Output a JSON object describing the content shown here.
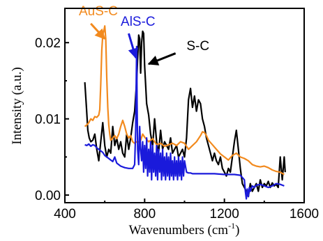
{
  "chart_data": {
    "type": "line",
    "title": "",
    "xlabel_main": "Wavenumbers (cm",
    "xlabel_sup": "-1",
    "xlabel_close": ")",
    "ylabel": "Intensity (a.u.)",
    "xlim": [
      400,
      1600
    ],
    "ylim": [
      -0.001,
      0.0245
    ],
    "xticks": [
      400,
      800,
      1200,
      1600
    ],
    "xtick_labels": [
      "400",
      "800",
      "1200",
      "1600"
    ],
    "yticks": [
      0.0,
      0.01,
      0.02
    ],
    "ytick_labels": [
      "0.00",
      "0.01",
      "0.02"
    ],
    "grid": false,
    "colors": {
      "black": "#000000",
      "orange": "#f28a1e",
      "blue": "#1a1adb"
    },
    "annotations": [
      {
        "text": "AuS-C",
        "color": "#f28a1e",
        "x": 470,
        "y": 0.0236,
        "arrow_to": [
          600,
          0.0205
        ],
        "arrow_from": [
          530,
          0.0225
        ]
      },
      {
        "text": "AlS-C",
        "color": "#1a1adb",
        "x": 680,
        "y": 0.0222,
        "arrow_to": [
          756,
          0.018
        ],
        "arrow_from": [
          720,
          0.0212
        ]
      },
      {
        "text": "S-C",
        "color": "#000000",
        "x": 1010,
        "y": 0.019,
        "arrow_to": [
          820,
          0.0172
        ],
        "arrow_from": [
          955,
          0.0186
        ]
      }
    ],
    "series": [
      {
        "name": "S-C",
        "color": "#000000",
        "x": [
          500,
          508,
          515,
          522,
          530,
          540,
          550,
          560,
          570,
          580,
          590,
          600,
          610,
          620,
          630,
          640,
          650,
          660,
          670,
          680,
          690,
          700,
          710,
          720,
          730,
          740,
          750,
          760,
          770,
          775,
          780,
          785,
          790,
          795,
          800,
          810,
          820,
          830,
          840,
          850,
          860,
          870,
          880,
          890,
          900,
          910,
          920,
          930,
          940,
          950,
          960,
          970,
          980,
          990,
          1000,
          1010,
          1020,
          1030,
          1040,
          1050,
          1060,
          1070,
          1080,
          1090,
          1100,
          1110,
          1120,
          1130,
          1140,
          1150,
          1160,
          1170,
          1180,
          1190,
          1200,
          1210,
          1220,
          1230,
          1240,
          1250,
          1260,
          1270,
          1280,
          1290,
          1300,
          1310,
          1320,
          1330,
          1340,
          1350,
          1360,
          1370,
          1380,
          1390,
          1400,
          1410,
          1420,
          1430,
          1440,
          1450,
          1460,
          1470,
          1480,
          1490,
          1500,
          1505
        ],
        "y": [
          0.0148,
          0.0115,
          0.0085,
          0.0075,
          0.007,
          0.0072,
          0.008,
          0.006,
          0.0045,
          0.007,
          0.0095,
          0.0065,
          0.005,
          0.006,
          0.0055,
          0.009,
          0.0065,
          0.0075,
          0.006,
          0.007,
          0.0055,
          0.005,
          0.008,
          0.006,
          0.0075,
          0.0095,
          0.011,
          0.015,
          0.021,
          0.0205,
          0.016,
          0.02,
          0.0215,
          0.0212,
          0.017,
          0.012,
          0.0105,
          0.008,
          0.0065,
          0.01,
          0.007,
          0.0055,
          0.0085,
          0.006,
          0.007,
          0.0065,
          0.006,
          0.0075,
          0.0055,
          0.006,
          0.0065,
          0.005,
          0.0055,
          0.006,
          0.005,
          0.0075,
          0.0125,
          0.014,
          0.0115,
          0.013,
          0.011,
          0.0125,
          0.012,
          0.01,
          0.009,
          0.0075,
          0.0065,
          0.0055,
          0.0045,
          0.0055,
          0.0045,
          0.004,
          0.005,
          0.0035,
          0.003,
          0.0025,
          0.0035,
          0.003,
          0.005,
          0.007,
          0.0085,
          0.006,
          0.0035,
          0.0015,
          0.001,
          0.0005,
          -0.0002,
          0.0015,
          0.0005,
          0.001,
          0.0015,
          0.0005,
          0.002,
          0.001,
          0.0015,
          0.0012,
          0.0018,
          0.001,
          0.0016,
          0.0012,
          0.0014,
          0.001,
          0.005,
          0.002,
          0.005,
          0.003
        ]
      },
      {
        "name": "AuS-C",
        "color": "#f28a1e",
        "x": [
          500,
          510,
          520,
          530,
          540,
          550,
          560,
          570,
          575,
          580,
          585,
          590,
          595,
          600,
          605,
          610,
          615,
          620,
          625,
          630,
          635,
          640,
          650,
          660,
          670,
          680,
          690,
          700,
          710,
          720,
          730,
          740,
          750,
          760,
          770,
          780,
          790,
          800,
          820,
          840,
          860,
          880,
          900,
          920,
          940,
          960,
          980,
          1000,
          1020,
          1040,
          1060,
          1080,
          1090,
          1100,
          1110,
          1120,
          1140,
          1160,
          1180,
          1200,
          1220,
          1240,
          1260,
          1280,
          1300,
          1320,
          1340,
          1360,
          1380,
          1400,
          1420,
          1440,
          1460,
          1480,
          1500
        ],
        "y": [
          0.009,
          0.0092,
          0.0095,
          0.01,
          0.0098,
          0.0103,
          0.0102,
          0.0105,
          0.0112,
          0.0145,
          0.019,
          0.021,
          0.0215,
          0.0222,
          0.0205,
          0.0155,
          0.0115,
          0.0092,
          0.008,
          0.0072,
          0.0073,
          0.0075,
          0.0078,
          0.0074,
          0.008,
          0.009,
          0.0098,
          0.009,
          0.008,
          0.0075,
          0.0078,
          0.007,
          0.0068,
          0.007,
          0.007,
          0.0072,
          0.008,
          0.0076,
          0.007,
          0.0074,
          0.0066,
          0.0068,
          0.0064,
          0.0066,
          0.0068,
          0.0065,
          0.007,
          0.0068,
          0.006,
          0.0065,
          0.007,
          0.0078,
          0.0083,
          0.0082,
          0.0078,
          0.0072,
          0.0066,
          0.006,
          0.0054,
          0.005,
          0.0046,
          0.0052,
          0.0055,
          0.005,
          0.0048,
          0.0045,
          0.004,
          0.0038,
          0.0037,
          0.0038,
          0.0036,
          0.0033,
          0.0031,
          0.003,
          0.0027
        ]
      },
      {
        "name": "AlS-C",
        "color": "#1a1adb",
        "x": [
          500,
          510,
          520,
          530,
          540,
          550,
          560,
          570,
          580,
          590,
          600,
          610,
          620,
          630,
          640,
          650,
          660,
          680,
          700,
          720,
          740,
          750,
          755,
          758,
          760,
          762,
          765,
          770,
          775,
          780,
          785,
          790,
          795,
          800,
          805,
          810,
          815,
          820,
          825,
          830,
          835,
          840,
          845,
          850,
          855,
          860,
          865,
          870,
          875,
          880,
          885,
          890,
          895,
          900,
          905,
          910,
          915,
          920,
          925,
          930,
          935,
          940,
          945,
          950,
          955,
          960,
          965,
          970,
          975,
          980,
          985,
          990,
          995,
          1000,
          1010,
          1020,
          1030,
          1040,
          1050,
          1100,
          1150,
          1200,
          1250,
          1280,
          1300,
          1305,
          1310,
          1315,
          1320,
          1325,
          1330,
          1340,
          1350,
          1360,
          1380,
          1400,
          1420,
          1440,
          1460,
          1480,
          1500
        ],
        "y": [
          0.0066,
          0.0065,
          0.0067,
          0.0064,
          0.0066,
          0.0065,
          0.0062,
          0.006,
          0.0058,
          0.0056,
          0.0052,
          0.005,
          0.0048,
          0.0046,
          0.0044,
          0.005,
          0.0042,
          0.0038,
          0.0036,
          0.0035,
          0.0035,
          0.004,
          0.0085,
          0.015,
          0.0195,
          0.012,
          0.006,
          0.004,
          0.009,
          0.006,
          0.0045,
          0.007,
          0.003,
          0.0065,
          0.0035,
          0.0075,
          0.0025,
          0.006,
          0.003,
          0.007,
          0.002,
          0.0065,
          0.003,
          0.0055,
          0.0025,
          0.0065,
          0.002,
          0.006,
          0.003,
          0.0055,
          0.002,
          0.006,
          0.0025,
          0.005,
          0.002,
          0.0055,
          0.0025,
          0.005,
          0.002,
          0.0055,
          0.0025,
          0.0045,
          0.002,
          0.005,
          0.0025,
          0.0045,
          0.002,
          0.005,
          0.0025,
          0.0045,
          0.002,
          0.005,
          0.0025,
          0.0045,
          0.003,
          0.0029,
          0.0029,
          0.0028,
          0.0028,
          0.0028,
          0.0028,
          0.0027,
          0.0027,
          0.0026,
          0.002,
          0.0005,
          -0.0005,
          0.0008,
          -0.0002,
          0.001,
          0.0005,
          0.0012,
          0.001,
          0.0013,
          0.0014,
          0.0012,
          0.001,
          0.0012,
          0.0015,
          0.0014,
          0.0012
        ]
      }
    ]
  }
}
